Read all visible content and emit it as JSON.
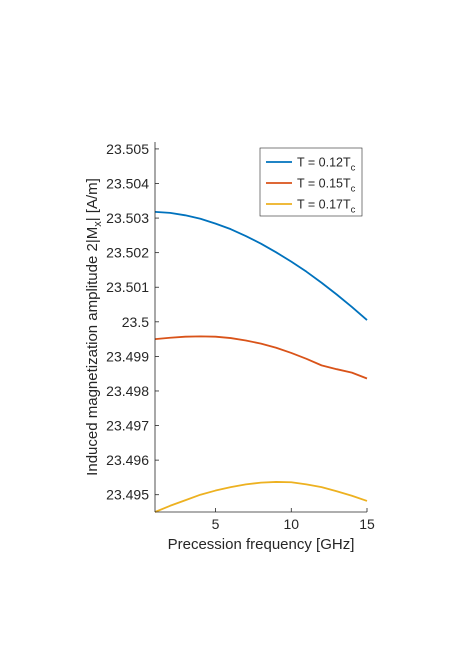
{
  "chart_data": {
    "type": "line",
    "xlabel": "Precession frequency [GHz]",
    "ylabel_main": "Induced magnetization amplitude   2|M",
    "ylabel_sub": "x",
    "ylabel_tail": "| [A/m]",
    "xlim": [
      1,
      15
    ],
    "ylim": [
      23.4945,
      23.5052
    ],
    "x_ticks": [
      5,
      10,
      15
    ],
    "x_tick_labels": [
      "5",
      "10",
      "15"
    ],
    "y_ticks": [
      23.495,
      23.496,
      23.497,
      23.498,
      23.499,
      23.5,
      23.501,
      23.502,
      23.503,
      23.504,
      23.505
    ],
    "y_tick_labels": [
      "23.495",
      "23.496",
      "23.497",
      "23.498",
      "23.499",
      "23.5",
      "23.501",
      "23.502",
      "23.503",
      "23.504",
      "23.505"
    ],
    "grid": false,
    "legend_position": "top-right",
    "series": [
      {
        "name": "T = 0.12T",
        "name_sub": "c",
        "color": "#0072BD",
        "x": [
          1,
          2,
          3,
          4,
          5,
          6,
          7,
          8,
          9,
          10,
          11,
          12,
          13,
          14,
          15
        ],
        "y": [
          23.50318,
          23.50315,
          23.50308,
          23.50298,
          23.50284,
          23.50268,
          23.50248,
          23.50226,
          23.50201,
          23.50174,
          23.50145,
          23.50113,
          23.50079,
          23.50043,
          23.50005
        ]
      },
      {
        "name": "T = 0.15T",
        "name_sub": "c",
        "color": "#D95319",
        "x": [
          1,
          2,
          3,
          4,
          5,
          6,
          7,
          8,
          9,
          10,
          11,
          12,
          13,
          14,
          15
        ],
        "y": [
          23.4995,
          23.49954,
          23.49957,
          23.49958,
          23.49957,
          23.49953,
          23.49946,
          23.49937,
          23.49925,
          23.4991,
          23.49893,
          23.49874,
          23.49863,
          23.49853,
          23.49836
        ]
      },
      {
        "name": "T = 0.17T",
        "name_sub": "c",
        "color": "#EDB120",
        "x": [
          1,
          2,
          3,
          4,
          5,
          6,
          7,
          8,
          9,
          10,
          11,
          12,
          13,
          14,
          15
        ],
        "y": [
          23.4945,
          23.49468,
          23.49484,
          23.495,
          23.49512,
          23.49522,
          23.4953,
          23.49535,
          23.49537,
          23.49536,
          23.4953,
          23.49522,
          23.4951,
          23.49497,
          23.49482
        ]
      }
    ]
  }
}
